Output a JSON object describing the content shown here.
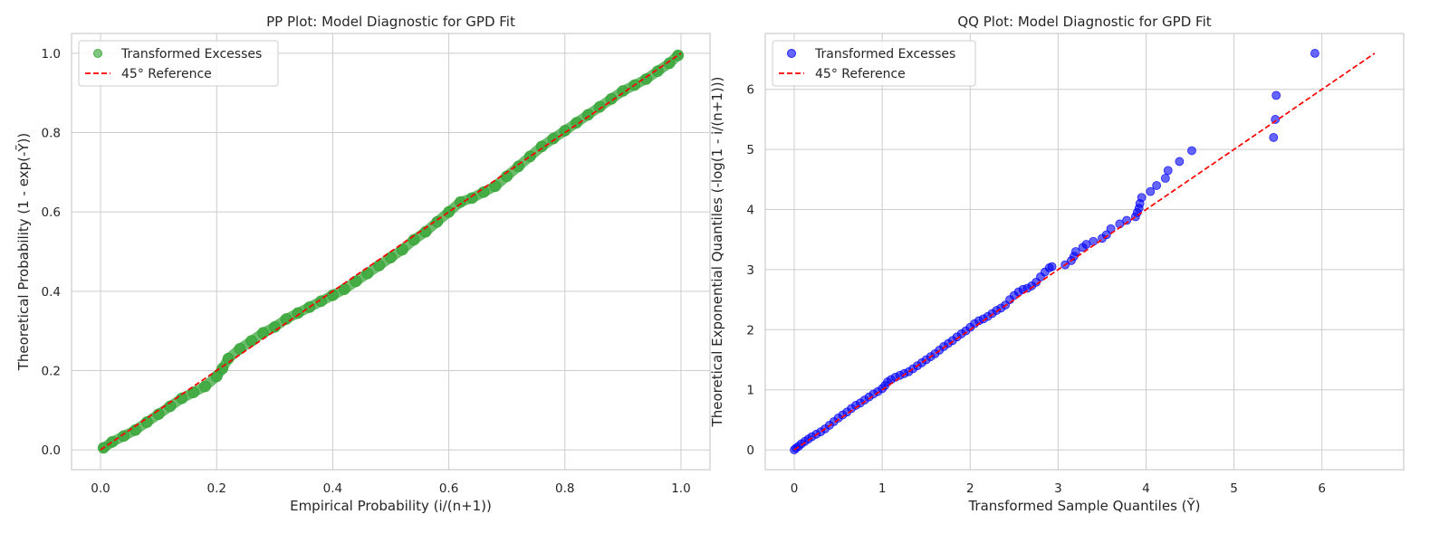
{
  "chart_data": [
    {
      "type": "scatter",
      "title": "PP Plot: Model Diagnostic for GPD Fit",
      "xlabel": "Empirical Probability (i/(n+1))",
      "ylabel": "Theoretical Probability (1 - exp(-Ỹ))",
      "xlim": [
        -0.05,
        1.05
      ],
      "ylim": [
        -0.05,
        1.05
      ],
      "xticks": [
        0.0,
        0.2,
        0.4,
        0.6,
        0.8,
        1.0
      ],
      "xtick_labels": [
        "0.0",
        "0.2",
        "0.4",
        "0.6",
        "0.8",
        "1.0"
      ],
      "yticks": [
        0.0,
        0.2,
        0.4,
        0.6,
        0.8,
        1.0
      ],
      "ytick_labels": [
        "0.0",
        "0.2",
        "0.4",
        "0.6",
        "0.8",
        "1.0"
      ],
      "grid": true,
      "legend_position": "top-left",
      "series": [
        {
          "name": "Transformed Excesses",
          "kind": "scatter",
          "color": "#2ca02c",
          "x": [
            0.005,
            0.02,
            0.04,
            0.06,
            0.08,
            0.1,
            0.12,
            0.14,
            0.16,
            0.18,
            0.2,
            0.21,
            0.22,
            0.24,
            0.26,
            0.28,
            0.3,
            0.32,
            0.34,
            0.36,
            0.38,
            0.4,
            0.42,
            0.44,
            0.46,
            0.48,
            0.5,
            0.52,
            0.54,
            0.56,
            0.58,
            0.6,
            0.62,
            0.64,
            0.66,
            0.68,
            0.7,
            0.72,
            0.74,
            0.76,
            0.78,
            0.8,
            0.82,
            0.84,
            0.86,
            0.88,
            0.9,
            0.92,
            0.94,
            0.96,
            0.98,
            0.995
          ],
          "y": [
            0.005,
            0.02,
            0.035,
            0.05,
            0.07,
            0.09,
            0.11,
            0.13,
            0.145,
            0.16,
            0.185,
            0.205,
            0.23,
            0.255,
            0.275,
            0.295,
            0.31,
            0.33,
            0.345,
            0.36,
            0.375,
            0.39,
            0.405,
            0.425,
            0.445,
            0.465,
            0.485,
            0.505,
            0.53,
            0.55,
            0.575,
            0.6,
            0.625,
            0.635,
            0.65,
            0.665,
            0.69,
            0.715,
            0.74,
            0.765,
            0.785,
            0.805,
            0.825,
            0.845,
            0.865,
            0.885,
            0.905,
            0.92,
            0.935,
            0.955,
            0.975,
            0.995
          ]
        },
        {
          "name": "45° Reference",
          "kind": "line",
          "style": "dashed",
          "color": "#ff0000",
          "x": [
            0.0,
            1.0
          ],
          "y": [
            0.0,
            1.0
          ]
        }
      ]
    },
    {
      "type": "scatter",
      "title": "QQ Plot: Model Diagnostic for GPD Fit",
      "xlabel": "Transformed Sample Quantiles (Ỹ)",
      "ylabel": "Theoretical Exponential Quantiles (-log(1 - i/(n+1)))",
      "xlim": [
        -0.33,
        6.93
      ],
      "ylim": [
        -0.33,
        6.93
      ],
      "xticks": [
        0,
        1,
        2,
        3,
        4,
        5,
        6
      ],
      "xtick_labels": [
        "0",
        "1",
        "2",
        "3",
        "4",
        "5",
        "6"
      ],
      "yticks": [
        0,
        1,
        2,
        3,
        4,
        5,
        6
      ],
      "ytick_labels": [
        "0",
        "1",
        "2",
        "3",
        "4",
        "5",
        "6"
      ],
      "grid": true,
      "legend_position": "top-left",
      "series": [
        {
          "name": "Transformed Excesses",
          "kind": "scatter",
          "color": "#0000ff",
          "x": [
            0.0,
            0.02,
            0.05,
            0.08,
            0.12,
            0.16,
            0.2,
            0.25,
            0.3,
            0.35,
            0.4,
            0.45,
            0.5,
            0.55,
            0.6,
            0.65,
            0.7,
            0.75,
            0.8,
            0.85,
            0.9,
            0.95,
            1.0,
            1.03,
            1.06,
            1.1,
            1.15,
            1.2,
            1.25,
            1.3,
            1.35,
            1.4,
            1.45,
            1.5,
            1.55,
            1.6,
            1.65,
            1.7,
            1.75,
            1.8,
            1.85,
            1.9,
            1.95,
            2.0,
            2.05,
            2.1,
            2.15,
            2.2,
            2.25,
            2.3,
            2.35,
            2.4,
            2.45,
            2.5,
            2.55,
            2.6,
            2.65,
            2.7,
            2.75,
            2.8,
            2.85,
            2.9,
            2.93,
            3.08,
            3.15,
            3.18,
            3.2,
            3.28,
            3.32,
            3.4,
            3.5,
            3.55,
            3.6,
            3.7,
            3.78,
            3.88,
            3.9,
            3.92,
            3.93,
            3.95,
            4.05,
            4.12,
            4.22,
            4.25,
            4.38,
            4.52,
            5.45,
            5.47,
            5.48,
            5.92
          ],
          "y": [
            0.0,
            0.03,
            0.06,
            0.1,
            0.14,
            0.18,
            0.22,
            0.26,
            0.3,
            0.35,
            0.41,
            0.47,
            0.53,
            0.58,
            0.63,
            0.69,
            0.74,
            0.78,
            0.83,
            0.88,
            0.93,
            0.97,
            1.02,
            1.07,
            1.13,
            1.17,
            1.21,
            1.24,
            1.27,
            1.3,
            1.35,
            1.4,
            1.45,
            1.5,
            1.55,
            1.6,
            1.66,
            1.72,
            1.77,
            1.82,
            1.88,
            1.93,
            1.98,
            2.04,
            2.1,
            2.15,
            2.18,
            2.22,
            2.27,
            2.32,
            2.36,
            2.41,
            2.5,
            2.57,
            2.63,
            2.67,
            2.69,
            2.73,
            2.79,
            2.88,
            2.96,
            3.03,
            3.05,
            3.08,
            3.15,
            3.22,
            3.3,
            3.37,
            3.42,
            3.47,
            3.52,
            3.58,
            3.68,
            3.76,
            3.82,
            3.88,
            3.95,
            4.02,
            4.1,
            4.2,
            4.3,
            4.4,
            4.52,
            4.65,
            4.8,
            4.98,
            5.2,
            5.5,
            5.9,
            6.6
          ]
        },
        {
          "name": "45° Reference",
          "kind": "line",
          "style": "dashed",
          "color": "#ff0000",
          "x": [
            0.0,
            6.6
          ],
          "y": [
            0.0,
            6.6
          ]
        }
      ]
    }
  ]
}
